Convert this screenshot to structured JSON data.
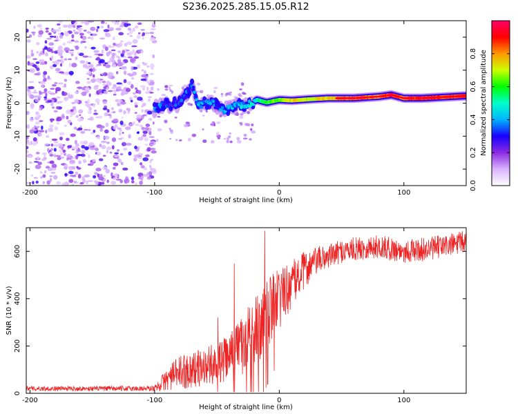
{
  "chart_data": [
    {
      "type": "heatmap",
      "title": "S236.2025.285.15.05.R12",
      "xlabel": "Height of straight line (km)",
      "ylabel": "Frequency (Hz)",
      "xlim": [
        -203,
        150
      ],
      "ylim": [
        -25,
        25
      ],
      "xticks": [
        -200,
        -100,
        0,
        100
      ],
      "yticks": [
        20,
        10,
        0,
        -10,
        -20
      ],
      "colorbar": {
        "label": "Normalized spectral amplitude",
        "range": [
          0,
          1
        ],
        "ticks": [
          "0.0",
          "0.2",
          "0.4",
          "0.6",
          "0.8"
        ],
        "colors": [
          "#ffffff",
          "#d9b3ff",
          "#8a2be2",
          "#1a00ff",
          "#00b4ff",
          "#00ffcc",
          "#00ff00",
          "#ccff00",
          "#ff9900",
          "#ff0000",
          "#ff0066"
        ]
      },
      "series": [
        {
          "name": "noise region",
          "x_range": [
            -203,
            -100
          ],
          "y_range": [
            -25,
            25
          ],
          "amplitude": 0.1
        },
        {
          "name": "tone track",
          "points": [
            {
              "x": -100,
              "y": -1.5,
              "a": 0.35
            },
            {
              "x": -90,
              "y": -0.5,
              "a": 0.3
            },
            {
              "x": -80,
              "y": 0.0,
              "a": 0.3
            },
            {
              "x": -70,
              "y": 5.5,
              "a": 0.35
            },
            {
              "x": -65,
              "y": -1.0,
              "a": 0.4
            },
            {
              "x": -55,
              "y": 0.5,
              "a": 0.35
            },
            {
              "x": -45,
              "y": -2.0,
              "a": 0.35
            },
            {
              "x": -35,
              "y": -1.0,
              "a": 0.4
            },
            {
              "x": -25,
              "y": -0.5,
              "a": 0.45
            },
            {
              "x": -18,
              "y": 1.0,
              "a": 0.5
            },
            {
              "x": -10,
              "y": 0.2,
              "a": 0.6
            },
            {
              "x": 0,
              "y": 1.0,
              "a": 0.65
            },
            {
              "x": 10,
              "y": 0.8,
              "a": 0.75
            },
            {
              "x": 25,
              "y": 1.2,
              "a": 0.7
            },
            {
              "x": 40,
              "y": 1.5,
              "a": 0.75
            },
            {
              "x": 60,
              "y": 1.5,
              "a": 0.85
            },
            {
              "x": 80,
              "y": 2.0,
              "a": 0.8
            },
            {
              "x": 90,
              "y": 2.5,
              "a": 0.9
            },
            {
              "x": 100,
              "y": 1.5,
              "a": 0.8
            },
            {
              "x": 115,
              "y": 1.5,
              "a": 0.9
            },
            {
              "x": 130,
              "y": 1.8,
              "a": 0.85
            },
            {
              "x": 150,
              "y": 2.2,
              "a": 0.85
            }
          ]
        }
      ]
    },
    {
      "type": "line",
      "xlabel": "Height of straight line (km)",
      "ylabel": "SNR (10 * v/v)",
      "xlim": [
        -203,
        150
      ],
      "ylim": [
        0,
        700
      ],
      "xticks": [
        -200,
        -100,
        0,
        100
      ],
      "yticks": [
        0,
        200,
        400,
        600
      ],
      "series": [
        {
          "name": "SNR",
          "color": "#ee2222",
          "envelope": {
            "x": [
              -203,
              -150,
              -100,
              -90,
              -80,
              -70,
              -60,
              -50,
              -40,
              -30,
              -20,
              -10,
              0,
              10,
              20,
              30,
              40,
              50,
              60,
              80,
              100,
              120,
              150
            ],
            "mean": [
              20,
              20,
              20,
              60,
              90,
              100,
              110,
              130,
              150,
              200,
              250,
              330,
              400,
              460,
              520,
              560,
              580,
              600,
              610,
              620,
              600,
              610,
              640
            ],
            "spread": [
              10,
              10,
              12,
              50,
              70,
              80,
              80,
              90,
              100,
              130,
              160,
              150,
              130,
              100,
              80,
              60,
              50,
              50,
              50,
              50,
              50,
              50,
              50
            ]
          }
        }
      ]
    }
  ]
}
